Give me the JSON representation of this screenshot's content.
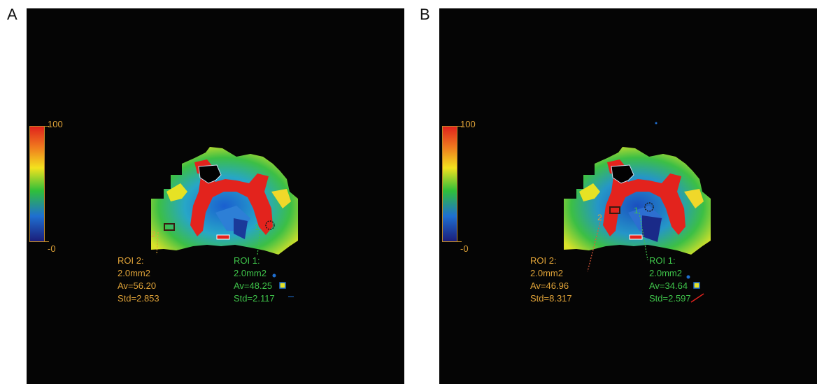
{
  "panels": [
    {
      "letter": "A",
      "colorbar": {
        "max_label": "100",
        "min_label": "-0"
      },
      "roi2": {
        "marker": "2",
        "title": "ROI 2:",
        "area": "2.0mm2",
        "av": "Av=56.20",
        "std": "Std=2.853"
      },
      "roi1": {
        "marker": "1",
        "title": "ROI 1:",
        "area": "2.0mm2",
        "av": "Av=48.25",
        "std": "Std=2.117"
      }
    },
    {
      "letter": "B",
      "colorbar": {
        "max_label": "100",
        "min_label": "-0"
      },
      "roi2": {
        "marker": "2",
        "title": "ROI 2:",
        "area": "2.0mm2",
        "av": "Av=46.96",
        "std": "Std=8.317"
      },
      "roi1": {
        "marker": "1",
        "title": "ROI 1:",
        "area": "2.0mm2",
        "av": "Av=34.64",
        "std": "Std=2.597"
      }
    }
  ],
  "colors": {
    "roi2": "#e0a338",
    "roi1": "#3fc44a",
    "background": "#050505"
  }
}
